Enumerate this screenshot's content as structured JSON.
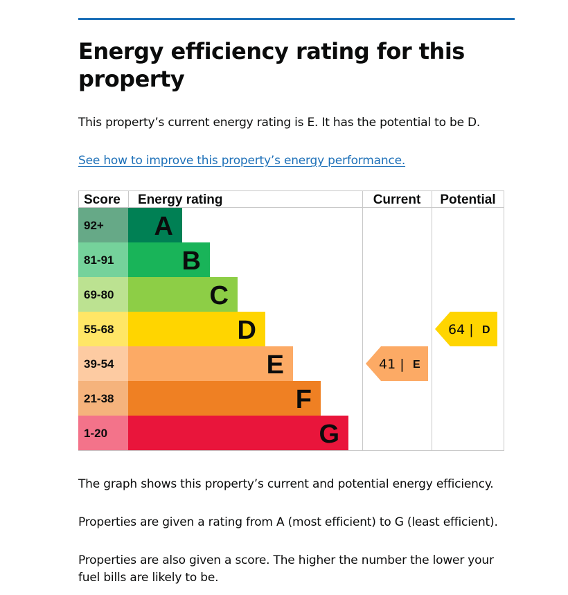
{
  "page": {
    "title": "Energy efficiency rating for this property",
    "summary": "This property’s current energy rating is E. It has the potential to be D.",
    "improve_link": "See how to improve this property’s energy performance.",
    "para_graph": "The graph shows this property’s current and potential energy efficiency.",
    "para_ratings": "Properties are given a rating from A (most efficient) to G (least efficient).",
    "para_score": "Properties are also given a score. The higher the number the lower your fuel bills are likely to be."
  },
  "chart_data": {
    "type": "bar",
    "headers": {
      "score": "Score",
      "rating": "Energy rating",
      "current": "Current",
      "potential": "Potential"
    },
    "bands": [
      {
        "letter": "A",
        "range": "92+",
        "color": "#008054",
        "score_color": "#66a987"
      },
      {
        "letter": "B",
        "range": "81-91",
        "color": "#19b459",
        "score_color": "#75d29b"
      },
      {
        "letter": "C",
        "range": "69-80",
        "color": "#8dce46",
        "score_color": "#bce291"
      },
      {
        "letter": "D",
        "range": "55-68",
        "color": "#ffd500",
        "score_color": "#ffe666"
      },
      {
        "letter": "E",
        "range": "39-54",
        "color": "#fcaa65",
        "score_color": "#fdcba2"
      },
      {
        "letter": "F",
        "range": "21-38",
        "color": "#ef8023",
        "score_color": "#f5b37c"
      },
      {
        "letter": "G",
        "range": "1-20",
        "color": "#e9153b",
        "score_color": "#f3738a"
      }
    ],
    "current": {
      "score": 41,
      "letter": "E",
      "label": "41 |",
      "color": "#fcaa65"
    },
    "potential": {
      "score": 64,
      "letter": "D",
      "label": "64 |",
      "color": "#ffd500"
    }
  }
}
